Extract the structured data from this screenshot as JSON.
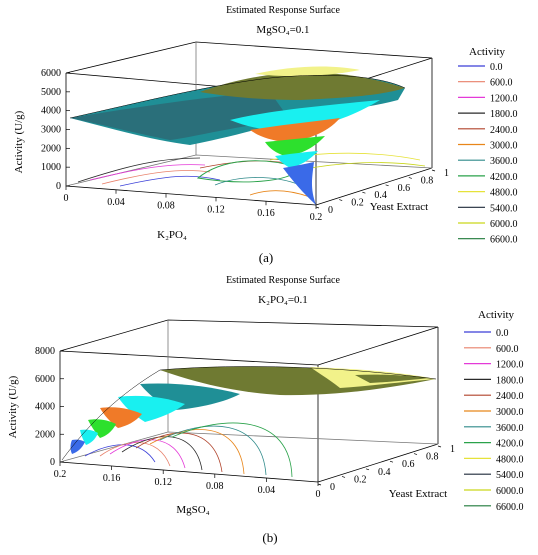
{
  "panels": [
    {
      "title": "Estimated Response Surface",
      "subtitle": "MgSO₄=0.1",
      "caption": "(a)"
    },
    {
      "title": "Estimated Response Surface",
      "subtitle": "K₂PO₄=0.1",
      "caption": "(b)"
    }
  ],
  "chart_data": [
    {
      "type": "surface3d",
      "title": "Estimated Response Surface",
      "subtitle": "MgSO₄=0.1",
      "xlabel": "K₂PO₄",
      "ylabel": "Yeast Extract",
      "zlabel": "Activity (U/g)",
      "x_ticks": [
        "0",
        "0.04",
        "0.08",
        "0.12",
        "0.16",
        "0.2"
      ],
      "y_ticks": [
        "0",
        "0.2",
        "0.4",
        "0.6",
        "0.8",
        "1"
      ],
      "z_ticks": [
        "0",
        "1000",
        "2000",
        "3000",
        "4000",
        "5000",
        "6000"
      ],
      "xlim": [
        0,
        0.2
      ],
      "ylim": [
        0,
        1
      ],
      "zlim": [
        0,
        6000
      ],
      "legend_title": "Activity",
      "legend_position": "right",
      "levels": [
        0,
        600,
        1200,
        1800,
        2400,
        3000,
        3600,
        4200,
        4800,
        5400,
        6000,
        6600
      ],
      "level_labels": [
        "0.0",
        "600.0",
        "1200.0",
        "1800.0",
        "2400.0",
        "3000.0",
        "3600.0",
        "4200.0",
        "4800.0",
        "5400.0",
        "6000.0",
        "6600.0"
      ]
    },
    {
      "type": "surface3d",
      "title": "Estimated Response Surface",
      "subtitle": "K₂PO₄=0.1",
      "xlabel": "MgSO₄",
      "ylabel": "Yeast Extract",
      "zlabel": "Activity (U/g)",
      "x_ticks": [
        "0.2",
        "0.16",
        "0.12",
        "0.08",
        "0.04",
        "0"
      ],
      "y_ticks": [
        "0",
        "0.2",
        "0.4",
        "0.6",
        "0.8",
        "1"
      ],
      "z_ticks": [
        "0",
        "2000",
        "4000",
        "6000",
        "8000"
      ],
      "xlim": [
        0.2,
        0
      ],
      "ylim": [
        0,
        1
      ],
      "zlim": [
        0,
        8000
      ],
      "legend_title": "Activity",
      "legend_position": "right",
      "levels": [
        0,
        600,
        1200,
        1800,
        2400,
        3000,
        3600,
        4200,
        4800,
        5400,
        6000,
        6600
      ],
      "level_labels": [
        "0.0",
        "600.0",
        "1200.0",
        "1800.0",
        "2400.0",
        "3000.0",
        "3600.0",
        "4200.0",
        "4800.0",
        "5400.0",
        "6000.0",
        "6600.0"
      ]
    }
  ],
  "colors": {
    "level_colors": [
      "#3a3fd8",
      "#e8806a",
      "#e43ad8",
      "#2a2a2a",
      "#b0422a",
      "#e8861a",
      "#2f8a8a",
      "#2aa24a",
      "#e6e23a",
      "#1f2a3a",
      "#c9d61a",
      "#1f7a3a"
    ],
    "fill_blue": "#3a6ae8",
    "fill_teal": "#1f8f96",
    "fill_cyan": "#19f0f0",
    "fill_orange": "#f07a28",
    "fill_green": "#2de02d",
    "fill_olive": "#6f7a32",
    "fill_yellow": "#f2f28a",
    "fill_darkteal": "#2a6f7a"
  }
}
